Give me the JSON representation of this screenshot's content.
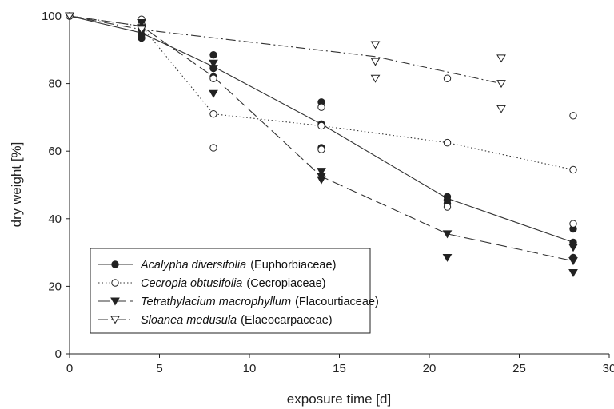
{
  "chart_data": {
    "type": "scatter",
    "xlabel": "exposure time [d]",
    "ylabel": "dry weight [%]",
    "xlim": [
      0,
      30
    ],
    "ylim": [
      0,
      100
    ],
    "xticks": [
      "0",
      "5",
      "10",
      "15",
      "20",
      "25",
      "30"
    ],
    "yticks": [
      "0",
      "20",
      "40",
      "60",
      "80",
      "100"
    ],
    "grid": false,
    "legend_position": "bottom-left",
    "series": [
      {
        "name": "Acalypha diversifolia",
        "family": "(Euphorbiaceae)",
        "marker": "filled-circle",
        "line": "solid",
        "points": [
          [
            0,
            100
          ],
          [
            4,
            93.5
          ],
          [
            4,
            94.5
          ],
          [
            4,
            96
          ],
          [
            8,
            88.5
          ],
          [
            8,
            82
          ],
          [
            8,
            84.5
          ],
          [
            14,
            74.5
          ],
          [
            14,
            68
          ],
          [
            14,
            61
          ],
          [
            21,
            46.5
          ],
          [
            21,
            45.5
          ],
          [
            21,
            44.5
          ],
          [
            28,
            33
          ],
          [
            28,
            37
          ],
          [
            28,
            28.5
          ]
        ],
        "means": [
          [
            0,
            100
          ],
          [
            4,
            95
          ],
          [
            8,
            85
          ],
          [
            14,
            68
          ],
          [
            21,
            46
          ],
          [
            28,
            33
          ]
        ]
      },
      {
        "name": "Cecropia obtusifolia",
        "family": "(Cecropiaceae)",
        "marker": "open-circle",
        "line": "dotted",
        "points": [
          [
            0,
            100
          ],
          [
            4,
            99
          ],
          [
            4,
            97.5
          ],
          [
            8,
            81.5
          ],
          [
            8,
            71
          ],
          [
            8,
            61
          ],
          [
            14,
            73
          ],
          [
            14,
            67.5
          ],
          [
            14,
            60.5
          ],
          [
            21,
            81.5
          ],
          [
            21,
            62.5
          ],
          [
            21,
            43.5
          ],
          [
            28,
            70.5
          ],
          [
            28,
            54.5
          ],
          [
            28,
            38.5
          ]
        ],
        "means": [
          [
            0,
            100
          ],
          [
            4,
            97
          ],
          [
            8,
            71
          ],
          [
            14,
            67.5
          ],
          [
            21,
            62.5
          ],
          [
            28,
            54.5
          ]
        ]
      },
      {
        "name": "Tetrathylacium macrophyllum",
        "family": "(Flacourtiaceae)",
        "marker": "filled-triangle-down",
        "line": "long-dash",
        "points": [
          [
            0,
            100
          ],
          [
            4,
            98
          ],
          [
            4,
            96.5
          ],
          [
            8,
            86
          ],
          [
            8,
            84.5
          ],
          [
            8,
            77
          ],
          [
            14,
            54
          ],
          [
            14,
            52.5
          ],
          [
            14,
            51.5
          ],
          [
            21,
            35.5
          ],
          [
            21,
            28.5
          ],
          [
            28,
            31.5
          ],
          [
            28,
            27.5
          ],
          [
            28,
            24
          ]
        ],
        "means": [
          [
            0,
            100
          ],
          [
            4,
            97
          ],
          [
            8,
            82
          ],
          [
            14,
            52.5
          ],
          [
            21,
            35.5
          ],
          [
            28,
            27.5
          ]
        ]
      },
      {
        "name": "Sloanea medusula",
        "family": "(Elaeocarpaceae)",
        "marker": "open-triangle-down",
        "line": "dash-dot",
        "points": [
          [
            0,
            100
          ],
          [
            4,
            96
          ],
          [
            17,
            91.5
          ],
          [
            17,
            86.5
          ],
          [
            17,
            81.5
          ],
          [
            24,
            87.5
          ],
          [
            24,
            80
          ],
          [
            24,
            72.5
          ]
        ],
        "means": [
          [
            0,
            100
          ],
          [
            4,
            96
          ],
          [
            17,
            88
          ],
          [
            24,
            80
          ]
        ]
      }
    ]
  }
}
